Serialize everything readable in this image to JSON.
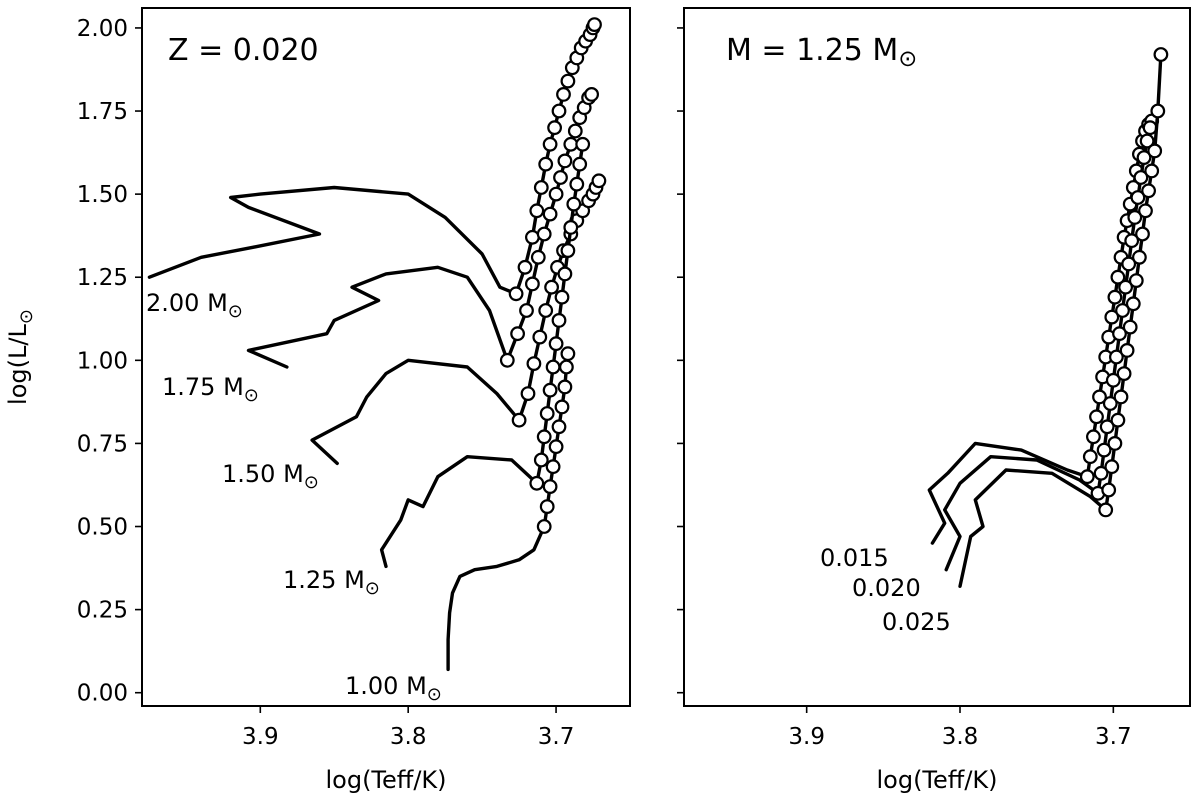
{
  "figure": {
    "panel_left_annotation": "Z = 0.020",
    "panel_right_annotation": "M = 1.25 M⊙",
    "xlabel": "log(Teff/K)",
    "ylabel": "log(L/L⊙)"
  },
  "chart_data": [
    {
      "type": "line",
      "panel": "left",
      "annotation": "Z = 0.020",
      "xlabel": "log(Teff/K)",
      "ylabel": "log(L/L⊙)",
      "xlim": [
        3.98,
        3.65
      ],
      "ylim": [
        -0.04,
        2.06
      ],
      "x_inverted": true,
      "xticks": [
        3.9,
        3.8,
        3.7
      ],
      "xtick_labels": [
        "3.9",
        "3.8",
        "3.7"
      ],
      "yticks": [
        0.0,
        0.25,
        0.5,
        0.75,
        1.0,
        1.25,
        1.5,
        1.75,
        2.0
      ],
      "ytick_labels": [
        "0.00",
        "0.25",
        "0.50",
        "0.75",
        "1.00",
        "1.25",
        "1.50",
        "1.75",
        "2.00"
      ],
      "grid": false,
      "legend": "none",
      "series": [
        {
          "name": "2.00 M⊙",
          "line_x": [
            3.975,
            3.94,
            3.905,
            3.86,
            3.908,
            3.92,
            3.9,
            3.85,
            3.8,
            3.775,
            3.75,
            3.738,
            3.727
          ],
          "line_y": [
            1.25,
            1.31,
            1.34,
            1.38,
            1.46,
            1.49,
            1.5,
            1.52,
            1.5,
            1.43,
            1.32,
            1.22,
            1.2
          ],
          "rgb_x": [
            3.727,
            3.721,
            3.716,
            3.713,
            3.71,
            3.707,
            3.704,
            3.701,
            3.698,
            3.695,
            3.692,
            3.689,
            3.686,
            3.683,
            3.68,
            3.677,
            3.675,
            3.674
          ],
          "rgb_y": [
            1.2,
            1.28,
            1.37,
            1.45,
            1.52,
            1.59,
            1.65,
            1.7,
            1.75,
            1.8,
            1.84,
            1.88,
            1.91,
            1.94,
            1.96,
            1.98,
            2.0,
            2.01
          ]
        },
        {
          "name": "1.75 M⊙",
          "line_x": [
            3.882,
            3.908,
            3.855,
            3.85,
            3.82,
            3.838,
            3.815,
            3.78,
            3.76,
            3.745,
            3.733
          ],
          "line_y": [
            0.98,
            1.03,
            1.08,
            1.12,
            1.18,
            1.22,
            1.26,
            1.28,
            1.25,
            1.15,
            1.0
          ],
          "rgb_x": [
            3.733,
            3.726,
            3.72,
            3.716,
            3.712,
            3.708,
            3.704,
            3.7,
            3.697,
            3.694,
            3.69,
            3.687,
            3.684,
            3.681,
            3.678,
            3.676
          ],
          "rgb_y": [
            1.0,
            1.08,
            1.15,
            1.23,
            1.31,
            1.38,
            1.44,
            1.5,
            1.55,
            1.6,
            1.65,
            1.69,
            1.73,
            1.76,
            1.79,
            1.8
          ]
        },
        {
          "name": "1.50 M⊙",
          "line_x": [
            3.848,
            3.865,
            3.835,
            3.828,
            3.815,
            3.8,
            3.76,
            3.74,
            3.725
          ],
          "line_y": [
            0.69,
            0.76,
            0.83,
            0.89,
            0.96,
            1.0,
            0.98,
            0.9,
            0.82
          ],
          "rgb_x": [
            3.725,
            3.719,
            3.715,
            3.711,
            3.707,
            3.703,
            3.699,
            3.695,
            3.69,
            3.686,
            3.682,
            3.678,
            3.675,
            3.673,
            3.671
          ],
          "rgb_y": [
            0.82,
            0.9,
            0.99,
            1.07,
            1.15,
            1.22,
            1.28,
            1.33,
            1.38,
            1.42,
            1.45,
            1.48,
            1.5,
            1.52,
            1.54
          ]
        },
        {
          "name": "1.25 M⊙",
          "line_x": [
            3.815,
            3.818,
            3.805,
            3.8,
            3.79,
            3.78,
            3.76,
            3.73,
            3.713
          ],
          "line_y": [
            0.38,
            0.43,
            0.52,
            0.58,
            0.56,
            0.65,
            0.71,
            0.7,
            0.63
          ],
          "rgb_x": [
            3.713,
            3.71,
            3.708,
            3.706,
            3.704,
            3.702,
            3.7,
            3.698,
            3.696,
            3.694,
            3.692,
            3.69,
            3.688,
            3.686,
            3.684,
            3.682
          ],
          "rgb_y": [
            0.63,
            0.7,
            0.77,
            0.84,
            0.91,
            0.98,
            1.05,
            1.12,
            1.19,
            1.26,
            1.33,
            1.4,
            1.47,
            1.53,
            1.59,
            1.65
          ]
        },
        {
          "name": "1.00 M⊙",
          "line_x": [
            3.773,
            3.773,
            3.772,
            3.77,
            3.765,
            3.755,
            3.74,
            3.725,
            3.715,
            3.708
          ],
          "line_y": [
            0.07,
            0.16,
            0.24,
            0.3,
            0.35,
            0.37,
            0.38,
            0.4,
            0.43,
            0.5
          ],
          "rgb_x": [
            3.708,
            3.706,
            3.704,
            3.702,
            3.7,
            3.698,
            3.696,
            3.694,
            3.693,
            3.692
          ],
          "rgb_y": [
            0.5,
            0.56,
            0.62,
            0.68,
            0.74,
            0.8,
            0.86,
            0.92,
            0.98,
            1.02
          ]
        }
      ]
    },
    {
      "type": "line",
      "panel": "right",
      "annotation": "M = 1.25 M⊙",
      "xlabel": "log(Teff/K)",
      "ylabel": "",
      "xlim": [
        3.98,
        3.65
      ],
      "ylim": [
        -0.04,
        2.06
      ],
      "x_inverted": true,
      "xticks": [
        3.9,
        3.8,
        3.7
      ],
      "xtick_labels": [
        "3.9",
        "3.8",
        "3.7"
      ],
      "y_ticklabels_shown": false,
      "grid": false,
      "legend": "none",
      "series": [
        {
          "name": "0.015",
          "line_x": [
            3.818,
            3.81,
            3.82,
            3.808,
            3.79,
            3.76,
            3.73,
            3.717
          ],
          "line_y": [
            0.45,
            0.51,
            0.61,
            0.66,
            0.75,
            0.73,
            0.67,
            0.65
          ],
          "rgb_x": [
            3.717,
            3.715,
            3.713,
            3.711,
            3.709,
            3.707,
            3.705,
            3.703,
            3.701,
            3.699,
            3.697,
            3.695,
            3.693,
            3.691,
            3.689,
            3.687,
            3.685,
            3.683,
            3.681,
            3.679,
            3.677,
            3.675
          ],
          "rgb_y": [
            0.65,
            0.71,
            0.77,
            0.83,
            0.89,
            0.95,
            1.01,
            1.07,
            1.13,
            1.19,
            1.25,
            1.31,
            1.37,
            1.42,
            1.47,
            1.52,
            1.57,
            1.62,
            1.66,
            1.69,
            1.71,
            1.72
          ]
        },
        {
          "name": "0.020",
          "line_x": [
            3.809,
            3.8,
            3.81,
            3.8,
            3.78,
            3.75,
            3.722,
            3.71
          ],
          "line_y": [
            0.37,
            0.47,
            0.55,
            0.63,
            0.71,
            0.7,
            0.64,
            0.6
          ],
          "rgb_x": [
            3.71,
            3.708,
            3.706,
            3.704,
            3.702,
            3.7,
            3.698,
            3.696,
            3.694,
            3.692,
            3.69,
            3.688,
            3.686,
            3.684,
            3.682,
            3.68,
            3.678,
            3.676
          ],
          "rgb_y": [
            0.6,
            0.66,
            0.73,
            0.8,
            0.87,
            0.94,
            1.01,
            1.08,
            1.15,
            1.22,
            1.29,
            1.36,
            1.43,
            1.49,
            1.55,
            1.61,
            1.66,
            1.7
          ]
        },
        {
          "name": "0.025",
          "line_x": [
            3.8,
            3.793,
            3.785,
            3.79,
            3.77,
            3.74,
            3.715,
            3.705
          ],
          "line_y": [
            0.32,
            0.47,
            0.5,
            0.58,
            0.67,
            0.66,
            0.59,
            0.55
          ],
          "rgb_x": [
            3.705,
            3.703,
            3.701,
            3.699,
            3.697,
            3.695,
            3.693,
            3.691,
            3.689,
            3.687,
            3.685,
            3.683,
            3.681,
            3.679,
            3.677,
            3.675,
            3.673,
            3.671,
            3.669
          ],
          "rgb_y": [
            0.55,
            0.61,
            0.68,
            0.75,
            0.82,
            0.89,
            0.96,
            1.03,
            1.1,
            1.17,
            1.24,
            1.31,
            1.38,
            1.45,
            1.51,
            1.57,
            1.63,
            1.75,
            1.92
          ]
        }
      ]
    }
  ]
}
